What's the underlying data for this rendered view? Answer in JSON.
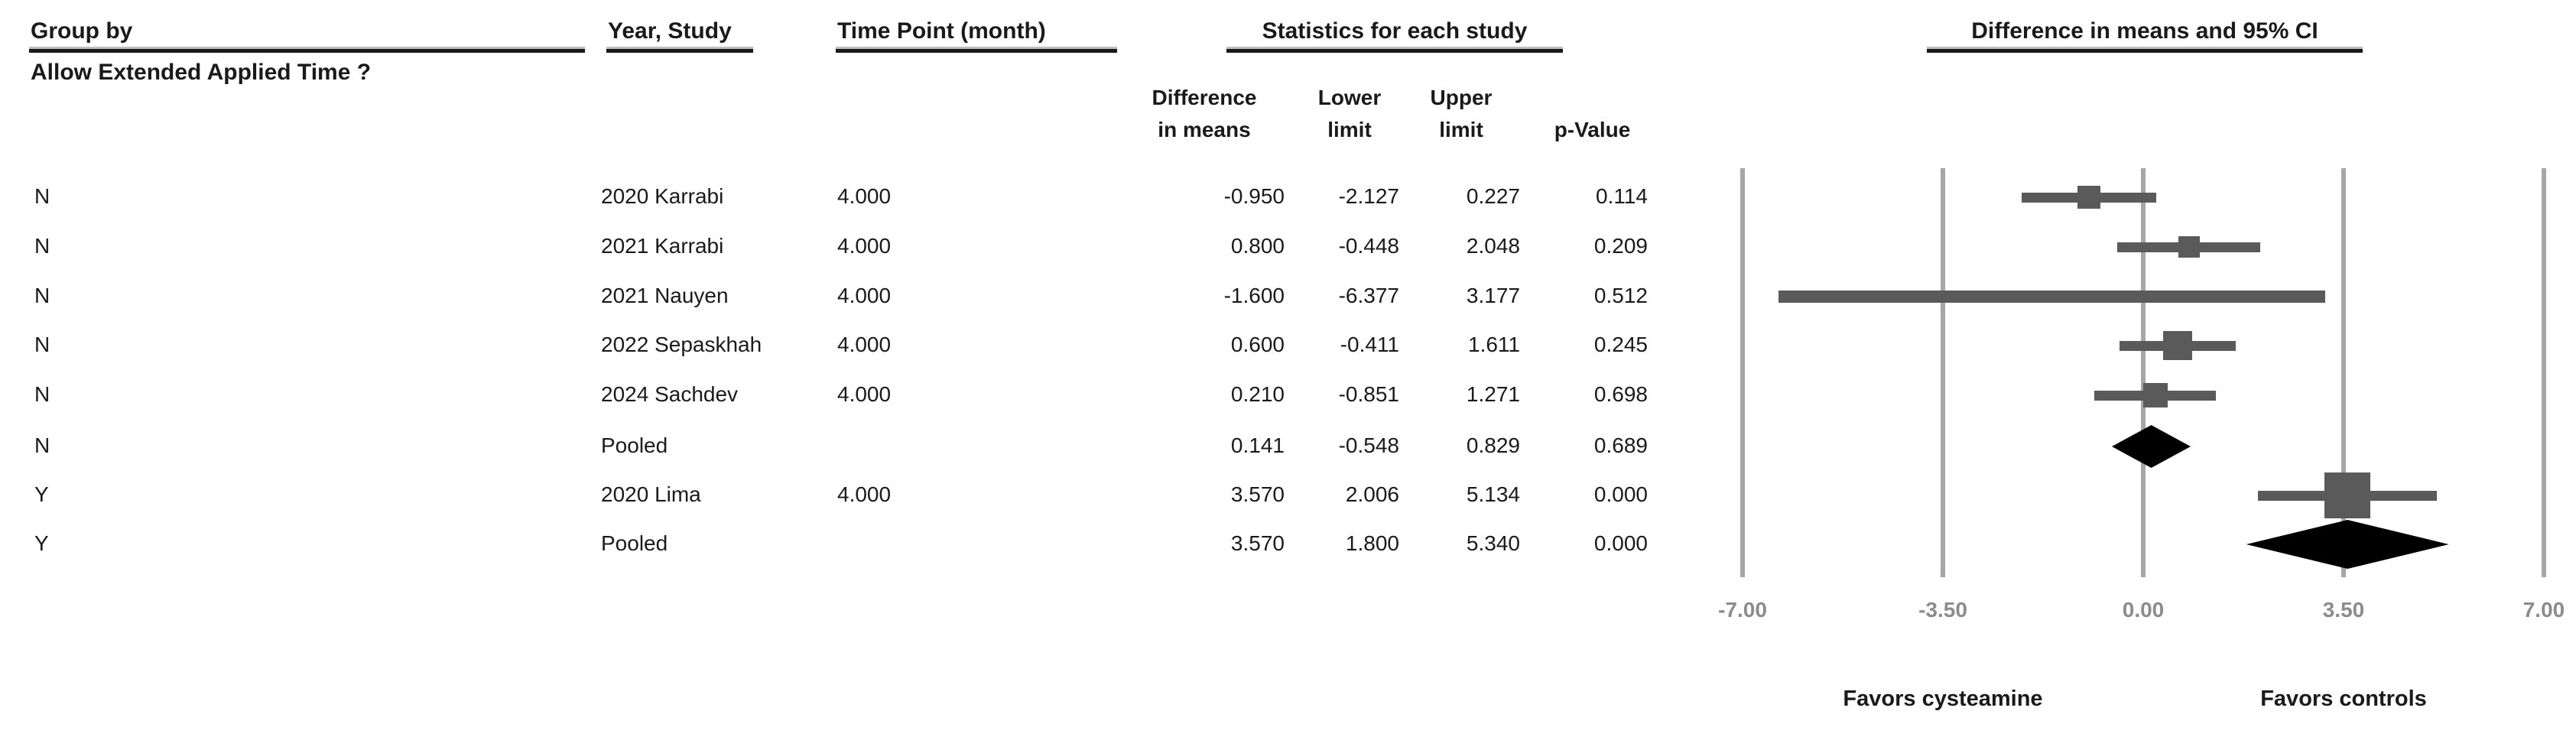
{
  "header": {
    "group_by_label": "Group by",
    "group_by_value": "Allow Extended Applied Time ?",
    "year_study_label": "Year, Study",
    "time_point_label": "Time Point (month)",
    "statistics_label": "Statistics for each study",
    "ci_plot_label": "Difference in means and 95% CI"
  },
  "subheaders": {
    "difference_line1": "Difference",
    "difference_line2": "in means",
    "lower_line1": "Lower",
    "lower_line2": "limit",
    "upper_line1": "Upper",
    "upper_line2": "limit",
    "p_value": "p-Value"
  },
  "footer": {
    "favors_left": "Favors cysteamine",
    "favors_right": "Favors controls"
  },
  "colors": {
    "marker_gray": "#5a5a5a",
    "diamond_black": "#000000",
    "gridline_gray": "#a6a6a6",
    "tick_gray": "#8c8c8c",
    "text_black": "#1a1a1a"
  },
  "chart_data": {
    "type": "forest",
    "title": "Difference in means and 95% CI",
    "x_axis": {
      "min": -7.0,
      "max": 7.0,
      "ticks": [
        -7.0,
        -3.5,
        0.0,
        3.5,
        7.0
      ],
      "tick_labels": [
        "-7.00",
        "-3.50",
        "0.00",
        "3.50",
        "7.00"
      ]
    },
    "grid": true,
    "rows": [
      {
        "group": "N",
        "study": "2020 Karrabi",
        "time_point": "4.000",
        "diff": -0.95,
        "lower": -2.127,
        "upper": 0.227,
        "p": 0.114,
        "diff_text": "-0.950",
        "lower_text": "-2.127",
        "upper_text": "0.227",
        "p_text": "0.114",
        "kind": "study",
        "marker_size": 30,
        "ci_thickness": 13
      },
      {
        "group": "N",
        "study": "2021 Karrabi",
        "time_point": "4.000",
        "diff": 0.8,
        "lower": -0.448,
        "upper": 2.048,
        "p": 0.209,
        "diff_text": "0.800",
        "lower_text": "-0.448",
        "upper_text": "2.048",
        "p_text": "0.209",
        "kind": "study",
        "marker_size": 28,
        "ci_thickness": 13
      },
      {
        "group": "N",
        "study": "2021 Nauyen",
        "time_point": "4.000",
        "diff": -1.6,
        "lower": -6.377,
        "upper": 3.177,
        "p": 0.512,
        "diff_text": "-1.600",
        "lower_text": "-6.377",
        "upper_text": "3.177",
        "p_text": "0.512",
        "kind": "study",
        "marker_size": 16,
        "ci_thickness": 16
      },
      {
        "group": "N",
        "study": "2022 Sepaskhah",
        "time_point": "4.000",
        "diff": 0.6,
        "lower": -0.411,
        "upper": 1.611,
        "p": 0.245,
        "diff_text": "0.600",
        "lower_text": "-0.411",
        "upper_text": "1.611",
        "p_text": "0.245",
        "kind": "study",
        "marker_size": 38,
        "ci_thickness": 13
      },
      {
        "group": "N",
        "study": "2024 Sachdev",
        "time_point": "4.000",
        "diff": 0.21,
        "lower": -0.851,
        "upper": 1.271,
        "p": 0.698,
        "diff_text": "0.210",
        "lower_text": "-0.851",
        "upper_text": "1.271",
        "p_text": "0.698",
        "kind": "study",
        "marker_size": 32,
        "ci_thickness": 13
      },
      {
        "group": "N",
        "study": "Pooled",
        "time_point": "",
        "diff": 0.141,
        "lower": -0.548,
        "upper": 0.829,
        "p": 0.689,
        "diff_text": "0.141",
        "lower_text": "-0.548",
        "upper_text": "0.829",
        "p_text": "0.689",
        "kind": "pooled",
        "diamond_height": 56
      },
      {
        "group": "Y",
        "study": "2020 Lima",
        "time_point": "4.000",
        "diff": 3.57,
        "lower": 2.006,
        "upper": 5.134,
        "p": 0.0,
        "diff_text": "3.570",
        "lower_text": "2.006",
        "upper_text": "5.134",
        "p_text": "0.000",
        "kind": "study",
        "marker_size": 60,
        "ci_thickness": 13
      },
      {
        "group": "Y",
        "study": "Pooled",
        "time_point": "",
        "diff": 3.57,
        "lower": 1.8,
        "upper": 5.34,
        "p": 0.0,
        "diff_text": "3.570",
        "lower_text": "1.800",
        "upper_text": "5.340",
        "p_text": "0.000",
        "kind": "pooled",
        "diamond_height": 64
      }
    ],
    "footnotes": [
      "Favors cysteamine",
      "Favors controls"
    ]
  }
}
